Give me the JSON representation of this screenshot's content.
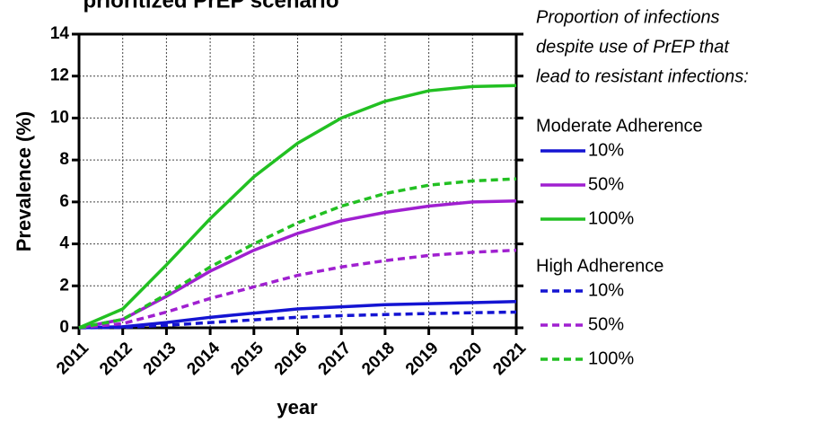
{
  "chart_data": {
    "type": "line",
    "title": "prioritized PrEP scenario",
    "xlabel": "year",
    "ylabel": "Prevalence (%)",
    "legend_title": [
      "Proportion of infections",
      "despite use of PrEP that",
      "lead to resistant infections:"
    ],
    "legend_groups": [
      "Moderate Adherence",
      "High Adherence"
    ],
    "x": [
      2011,
      2012,
      2013,
      2014,
      2015,
      2016,
      2017,
      2018,
      2019,
      2020,
      2021
    ],
    "xlim": [
      2011,
      2021
    ],
    "xticks": [
      2011,
      2012,
      2013,
      2014,
      2015,
      2016,
      2017,
      2018,
      2019,
      2020,
      2021
    ],
    "ylim": [
      0,
      14
    ],
    "yticks": [
      0,
      2,
      4,
      6,
      8,
      10,
      12,
      14
    ],
    "grid": true,
    "legend": "right",
    "series": [
      {
        "name": "10%",
        "group": 0,
        "dashed": false,
        "color": "#1414d2",
        "values": [
          0,
          0.05,
          0.25,
          0.5,
          0.7,
          0.9,
          1.0,
          1.1,
          1.15,
          1.2,
          1.25
        ]
      },
      {
        "name": "50%",
        "group": 0,
        "dashed": false,
        "color": "#a020d0",
        "values": [
          0,
          0.4,
          1.5,
          2.7,
          3.7,
          4.5,
          5.1,
          5.5,
          5.8,
          6.0,
          6.05
        ]
      },
      {
        "name": "100%",
        "group": 0,
        "dashed": false,
        "color": "#22c022",
        "values": [
          0,
          0.9,
          3.0,
          5.2,
          7.2,
          8.8,
          10.0,
          10.8,
          11.3,
          11.5,
          11.55
        ]
      },
      {
        "name": "10%",
        "group": 1,
        "dashed": true,
        "color": "#1414d2",
        "values": [
          0,
          0.02,
          0.12,
          0.25,
          0.38,
          0.5,
          0.58,
          0.63,
          0.68,
          0.72,
          0.75
        ]
      },
      {
        "name": "50%",
        "group": 1,
        "dashed": true,
        "color": "#a020d0",
        "values": [
          0,
          0.2,
          0.75,
          1.4,
          1.95,
          2.5,
          2.9,
          3.2,
          3.45,
          3.6,
          3.7
        ]
      },
      {
        "name": "100%",
        "group": 1,
        "dashed": true,
        "color": "#22c022",
        "values": [
          0,
          0.4,
          1.6,
          2.9,
          4.0,
          5.0,
          5.8,
          6.4,
          6.8,
          7.0,
          7.1
        ]
      }
    ]
  }
}
